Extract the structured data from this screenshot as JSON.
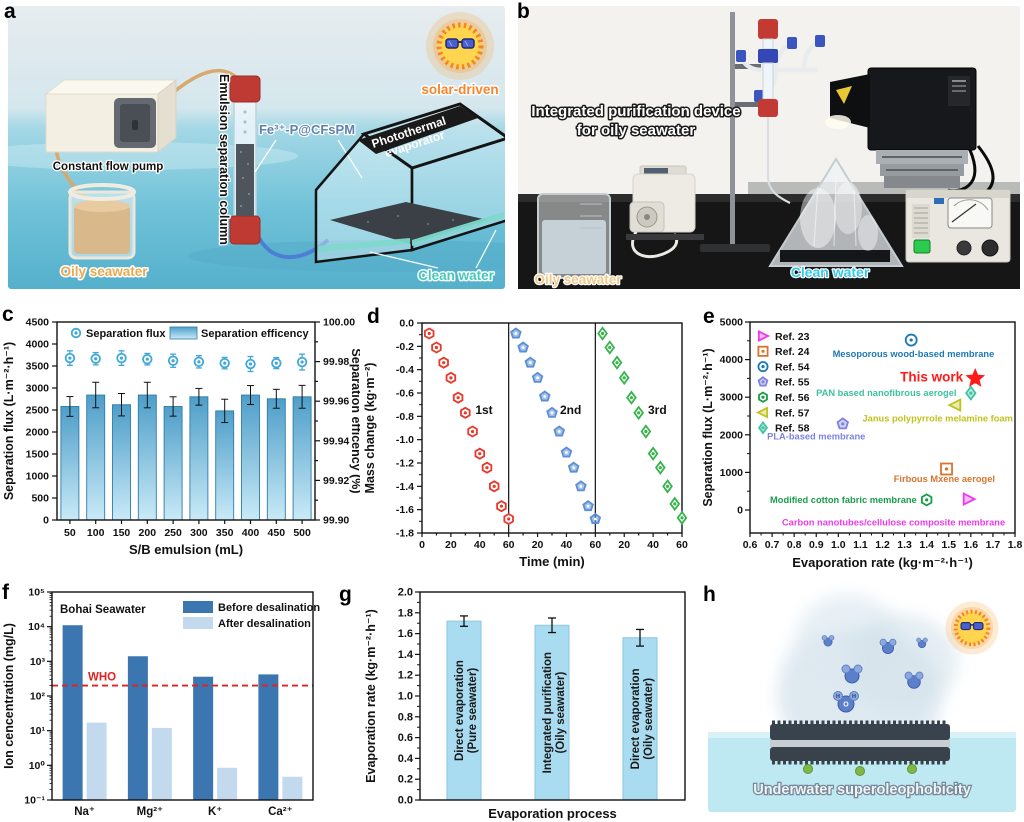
{
  "panel_letters": {
    "a": "a",
    "b": "b",
    "c": "c",
    "d": "d",
    "e": "e",
    "f": "f",
    "g": "g",
    "h": "h"
  },
  "panel_a": {
    "labels": {
      "solar_driven": "solar-driven",
      "oily_seawater": "Oily seawater",
      "constant_flow_pump": "Constant flow pump",
      "emulsion_separation_column": "Emulsion separation column",
      "membrane": "Fe³⁺-P@CFsPM",
      "photothermal_line1": "Photothermal",
      "photothermal_line2": "evaporator",
      "clean_water": "Clean water"
    }
  },
  "panel_b": {
    "labels": {
      "device_line1": "Integrated purification device",
      "device_line2": "for oily seawater",
      "oily_seawater": "Oily seawater",
      "clean_water": "Clean water"
    }
  },
  "panel_h": {
    "caption": "Underwater superoleophobicity",
    "molecule_o": "O",
    "molecule_h": "H"
  },
  "chart_data": [
    {
      "panel": "c",
      "type": "bar",
      "xlabel": "S/B emulsion (mL)",
      "ylabel_left": "Separation flux (L·m⁻²·h⁻¹)",
      "ylabel_right": "Separation efficency (%)",
      "categories": [
        "50",
        "100",
        "150",
        "200",
        "250",
        "300",
        "350",
        "400",
        "450",
        "500"
      ],
      "left_axis": {
        "min": 0,
        "max": 4500,
        "ticks": [
          "0",
          "500",
          "1000",
          "1500",
          "2000",
          "2500",
          "3000",
          "3500",
          "4000",
          "4500"
        ]
      },
      "right_axis": {
        "min": 99.9,
        "max": 100.0,
        "ticks": [
          "99.90",
          "99.92",
          "99.94",
          "99.96",
          "99.98",
          "100.00"
        ]
      },
      "series": [
        {
          "name": "Separation flux",
          "plot": "scatter",
          "marker": "circle",
          "color": "#3FA8D8",
          "values": [
            3680,
            3665,
            3680,
            3655,
            3620,
            3595,
            3565,
            3545,
            3565,
            3590
          ],
          "errors": [
            165,
            140,
            165,
            130,
            150,
            140,
            130,
            170,
            125,
            180
          ]
        },
        {
          "name": "Separation efficency",
          "plot": "bar",
          "color_top": "#4E9EC9",
          "color_bottom": "#C9EAF7",
          "edge": "#2E7DA8",
          "values_left_scale": [
            2580,
            2840,
            2620,
            2840,
            2580,
            2800,
            2480,
            2840,
            2755,
            2800
          ],
          "errors_left_scale": [
            225,
            290,
            255,
            290,
            220,
            190,
            265,
            215,
            215,
            260
          ],
          "efficiency_percent": [
            99.957,
            99.963,
            99.958,
            99.963,
            99.957,
            99.962,
            99.955,
            99.963,
            99.961,
            99.962
          ]
        }
      ]
    },
    {
      "panel": "d",
      "type": "scatter",
      "xlabel": "Time (min)",
      "ylabel": "Mass change (kg·m⁻²)",
      "xlim": [
        0,
        60
      ],
      "xticks": [
        "0",
        "20",
        "40",
        "60"
      ],
      "ylim": [
        -1.8,
        0.0
      ],
      "yticks": [
        "0.0",
        "-0.2",
        "-0.4",
        "-0.6",
        "-0.8",
        "-1.0",
        "-1.2",
        "-1.4",
        "-1.6",
        "-1.8"
      ],
      "x": [
        5,
        10,
        15,
        20,
        25,
        30,
        35,
        40,
        45,
        50,
        55,
        60
      ],
      "series": [
        {
          "name": "1st",
          "marker": "hexagon",
          "color": "#E8392B",
          "style": "open-dot",
          "y": [
            -0.09,
            -0.21,
            -0.34,
            -0.47,
            -0.64,
            -0.77,
            -0.93,
            -1.12,
            -1.24,
            -1.4,
            -1.57,
            -1.68
          ]
        },
        {
          "name": "2nd",
          "marker": "pentagon",
          "color": "#5B8FD4",
          "style": "solid-light",
          "y": [
            -0.09,
            -0.21,
            -0.34,
            -0.47,
            -0.63,
            -0.77,
            -0.93,
            -1.11,
            -1.24,
            -1.4,
            -1.57,
            -1.68
          ]
        },
        {
          "name": "3rd",
          "marker": "diamond",
          "color": "#35B44A",
          "style": "open-dot",
          "y": [
            -0.09,
            -0.21,
            -0.34,
            -0.47,
            -0.64,
            -0.77,
            -0.93,
            -1.12,
            -1.24,
            -1.4,
            -1.55,
            -1.67
          ]
        }
      ]
    },
    {
      "panel": "e",
      "type": "scatter",
      "xlabel": "Evaporation rate (kg·m⁻²·h⁻¹)",
      "ylabel": "Separation flux (L·m⁻²·h⁻¹)",
      "xlim": [
        0.6,
        1.8
      ],
      "xticks": [
        "0.6",
        "0.7",
        "0.8",
        "0.9",
        "1.0",
        "1.1",
        "1.2",
        "1.3",
        "1.4",
        "1.5",
        "1.6",
        "1.7",
        "1.8"
      ],
      "ylim": [
        -610,
        5000
      ],
      "yticks": [
        "0",
        "1000",
        "2000",
        "3000",
        "4000",
        "5000"
      ],
      "legend": [
        "Ref. 23",
        "Ref. 24",
        "Ref. 54",
        "Ref. 55",
        "Ref. 56",
        "Ref. 57",
        "Ref. 58"
      ],
      "points": [
        {
          "ref": "Ref. 23",
          "marker": "triangle-right",
          "color": "#E93CE9",
          "x": 1.59,
          "y": 290,
          "label": "Carbon nanotubes/cellulose composite membrane",
          "label_x": 1.25,
          "label_y": -330,
          "anchor": "middle"
        },
        {
          "ref": "Ref. 24",
          "marker": "square",
          "color": "#D9742E",
          "x": 1.49,
          "y": 1090,
          "label": "Firbous Mxene aerogel",
          "label_x": 1.48,
          "label_y": 820,
          "anchor": "middle"
        },
        {
          "ref": "Ref. 54",
          "marker": "circle",
          "color": "#1B79B8",
          "x": 1.33,
          "y": 4520,
          "label": "Mesoporous wood-based membrane",
          "label_x": 1.34,
          "label_y": 4150,
          "anchor": "middle"
        },
        {
          "ref": "Ref. 55",
          "marker": "pentagon",
          "color": "#7D82E0",
          "x": 1.02,
          "y": 2290,
          "label": "PLA-based membrane",
          "label_x": 0.9,
          "label_y": 1950,
          "anchor": "middle"
        },
        {
          "ref": "Ref. 56",
          "marker": "hexagon",
          "color": "#189E48",
          "x": 1.4,
          "y": 270,
          "label": "Modified cotton fabric membrane",
          "label_x": 1.355,
          "label_y": 270,
          "anchor": "end"
        },
        {
          "ref": "Ref. 57",
          "marker": "triangle-left",
          "color": "#C2C21E",
          "x": 1.53,
          "y": 2790,
          "label": "Janus polypyrrole melamine foam",
          "label_x": 1.45,
          "label_y": 2430,
          "anchor": "middle"
        },
        {
          "ref": "Ref. 58",
          "marker": "diamond",
          "color": "#3EC2A2",
          "x": 1.6,
          "y": 3110,
          "label": "PAN based nanofibrous aerogel",
          "label_x": 1.535,
          "label_y": 3110,
          "anchor": "end"
        },
        {
          "ref": "This work",
          "marker": "star",
          "color": "#FF1A1A",
          "x": 1.62,
          "y": 3500,
          "label": "This work",
          "label_x": 1.565,
          "label_y": 3500,
          "anchor": "end",
          "emphasis": true
        }
      ]
    },
    {
      "panel": "f",
      "type": "bar",
      "yscale": "log",
      "ylabel": "Ion cencentration (mg/L)",
      "ylim": [
        0.1,
        100000
      ],
      "yticks": [
        "10⁻¹",
        "10⁰",
        "10¹",
        "10²",
        "10³",
        "10⁴",
        "10⁵"
      ],
      "categories": [
        "Na⁺",
        "Mg²⁺",
        "K⁺",
        "Ca²⁺"
      ],
      "annotation": "Bohai Seawater",
      "who_line": {
        "label": "WHO",
        "value": 200,
        "color": "#E02222"
      },
      "series": [
        {
          "name": "Before desalination",
          "color": "#3B76B1",
          "values": [
            11000,
            1400,
            360,
            420
          ]
        },
        {
          "name": "After desalination",
          "color": "#C3D9ED",
          "values": [
            17,
            12,
            0.85,
            0.47
          ]
        }
      ]
    },
    {
      "panel": "g",
      "type": "bar",
      "xlabel": "Evaporation process",
      "ylabel": "Evaporation rate (kg·m⁻²·h⁻¹)",
      "ylim": [
        0.0,
        2.0
      ],
      "yticks": [
        "0.0",
        "0.2",
        "0.4",
        "0.6",
        "0.8",
        "1.0",
        "1.2",
        "1.4",
        "1.6",
        "1.8",
        "2.0"
      ],
      "bar_color": "#A9DCF1",
      "bar_edge": "#8CC6DE",
      "bars": [
        {
          "label_line1": "Direct evaporation",
          "label_line2": "(Pure seawater)",
          "value": 1.72,
          "error": 0.05
        },
        {
          "label_line1": "Integrated purification",
          "label_line2": "(Oily seawater)",
          "value": 1.68,
          "error": 0.07
        },
        {
          "label_line1": "Direct evaporation",
          "label_line2": "(Oily seawater)",
          "value": 1.56,
          "error": 0.08
        }
      ]
    }
  ]
}
